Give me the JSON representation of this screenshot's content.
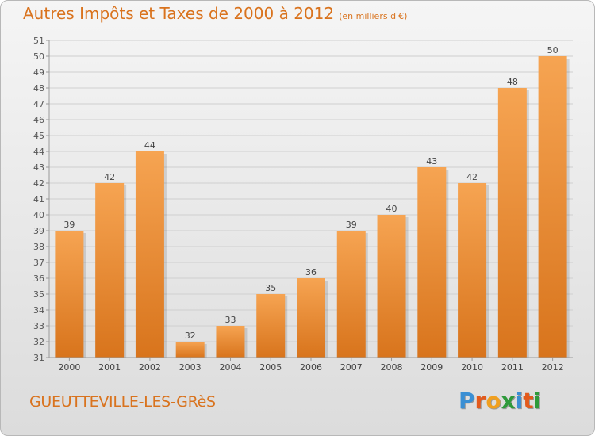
{
  "title": {
    "main": "Autres Impôts et Taxes de 2000 à 2012",
    "unit": "(en milliers d'€)"
  },
  "commune": "GUEUTTEVILLE-LES-GRèS",
  "logo": {
    "letters": [
      {
        "char": "P",
        "color": "#3a8fd4"
      },
      {
        "char": "r",
        "color": "#e35a1c"
      },
      {
        "char": "o",
        "color": "#f0a020"
      },
      {
        "char": "x",
        "color": "#2e9a3a"
      },
      {
        "char": "i",
        "color": "#3a8fd4"
      },
      {
        "char": "t",
        "color": "#e35a1c"
      },
      {
        "char": "i",
        "color": "#2e9a3a"
      }
    ]
  },
  "colors": {
    "bar_light": "#f6a452",
    "bar_dark": "#d8741c",
    "title": "#d9731e",
    "grid": "#cfcfcf",
    "axis": "#9a9a9a"
  },
  "chart_data": {
    "type": "bar",
    "categories": [
      "2000",
      "2001",
      "2002",
      "2003",
      "2004",
      "2005",
      "2006",
      "2007",
      "2008",
      "2009",
      "2010",
      "2011",
      "2012"
    ],
    "values": [
      39,
      42,
      44,
      32,
      33,
      35,
      36,
      39,
      40,
      43,
      42,
      48,
      50
    ],
    "ylim": [
      31,
      51
    ],
    "yticks": [
      31,
      32,
      33,
      34,
      35,
      36,
      37,
      38,
      39,
      40,
      41,
      42,
      43,
      44,
      45,
      46,
      47,
      48,
      49,
      50,
      51
    ],
    "grid": true,
    "data_labels": true
  }
}
